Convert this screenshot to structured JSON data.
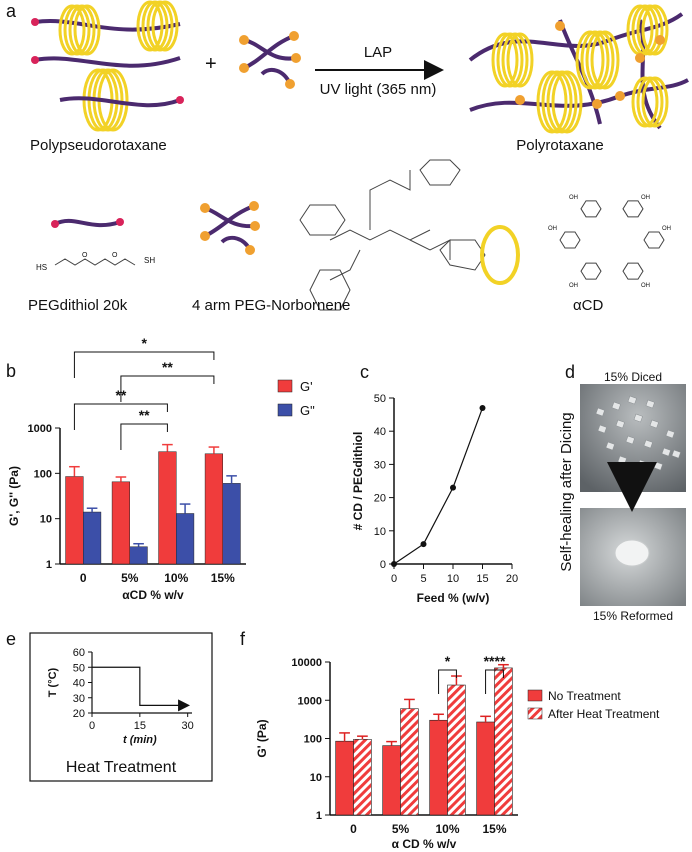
{
  "panel_labels": {
    "a": "a",
    "b": "b",
    "c": "c",
    "d": "d",
    "e": "e",
    "f": "f"
  },
  "panel_a": {
    "reagent_top": "LAP",
    "reagent_bottom": "UV light (365 nm)",
    "plus": "+",
    "left_label": "Polypseudorotaxane",
    "right_label": "Polyrotaxane",
    "legend": [
      "PEGdithiol 20k",
      "4 arm PEG-Norbornene",
      "αCD"
    ],
    "chem_labels": {
      "sh1": "HS",
      "sh2": "SH",
      "o": "O",
      "oh": "OH"
    },
    "colors": {
      "chain": "#4b2a6e",
      "ring": "#f2d226",
      "thiol_end": "#d8235a",
      "norbornene_end": "#f0a030"
    }
  },
  "chart_data": [
    {
      "id": "b",
      "type": "bar",
      "categories": [
        "0",
        "5%",
        "10%",
        "15%"
      ],
      "series": [
        {
          "name": "G'",
          "values": [
            85,
            65,
            300,
            270
          ],
          "err": [
            55,
            18,
            130,
            110
          ],
          "color": "#f03c3c"
        },
        {
          "name": "G\"",
          "values": [
            14,
            2.4,
            13,
            60
          ],
          "err": [
            3,
            0.4,
            8,
            28
          ],
          "color": "#3c4fa8"
        }
      ],
      "xlabel": "αCD % w/v",
      "ylabel": "G', G'' (Pa)",
      "yscale": "log",
      "ylim": [
        1,
        1000
      ],
      "yticks": [
        "1",
        "10",
        "100",
        "1000"
      ],
      "legend": "top-right",
      "significance": [
        {
          "from": 0,
          "to": 3,
          "label": "*"
        },
        {
          "from": 1,
          "to": 3,
          "label": "**"
        },
        {
          "from": 0,
          "to": 2,
          "label": "**"
        },
        {
          "from": 1,
          "to": 2,
          "label": "**"
        }
      ]
    },
    {
      "id": "c",
      "type": "line",
      "x": [
        0,
        5,
        10,
        15
      ],
      "y": [
        0,
        6,
        23,
        47
      ],
      "xlabel": "Feed % (w/v)",
      "ylabel": "# CD / PEGdithiol",
      "xlim": [
        0,
        20
      ],
      "ylim": [
        0,
        50
      ],
      "xticks": [
        "0",
        "5",
        "10",
        "15",
        "20"
      ],
      "yticks": [
        "0",
        "10",
        "20",
        "30",
        "40",
        "50"
      ]
    },
    {
      "id": "e",
      "type": "line",
      "x": [
        0,
        15,
        15,
        30
      ],
      "y": [
        50,
        50,
        25,
        25
      ],
      "xlabel": "t (min)",
      "ylabel": "T (°C)",
      "xlim": [
        0,
        37
      ],
      "ylim": [
        20,
        60
      ],
      "xticks": [
        "0",
        "15",
        "30"
      ],
      "yticks": [
        "20",
        "30",
        "40",
        "50",
        "60"
      ],
      "caption": "Heat Treatment"
    },
    {
      "id": "f",
      "type": "bar",
      "categories": [
        "0",
        "5%",
        "10%",
        "15%"
      ],
      "series": [
        {
          "name": "No  Treatment",
          "values": [
            85,
            65,
            300,
            270
          ],
          "err": [
            55,
            18,
            130,
            110
          ],
          "color": "#f03c3c"
        },
        {
          "name": "After Heat Treatment",
          "values": [
            95,
            600,
            2500,
            7000
          ],
          "err": [
            20,
            450,
            1800,
            1500
          ],
          "color": "#f03c3c",
          "hatched": true
        }
      ],
      "xlabel": "α CD % w/v",
      "ylabel": "G' (Pa)",
      "yscale": "log",
      "ylim": [
        1,
        10000
      ],
      "yticks": [
        "1",
        "10",
        "100",
        "1000",
        "10000"
      ],
      "legend": "right",
      "significance": [
        {
          "category": 2,
          "label": "*"
        },
        {
          "category": 3,
          "label": "****"
        }
      ]
    }
  ],
  "panel_d": {
    "top_caption": "15% Diced",
    "bottom_caption": "15% Reformed",
    "side_label": "Self-healing after Dicing"
  }
}
